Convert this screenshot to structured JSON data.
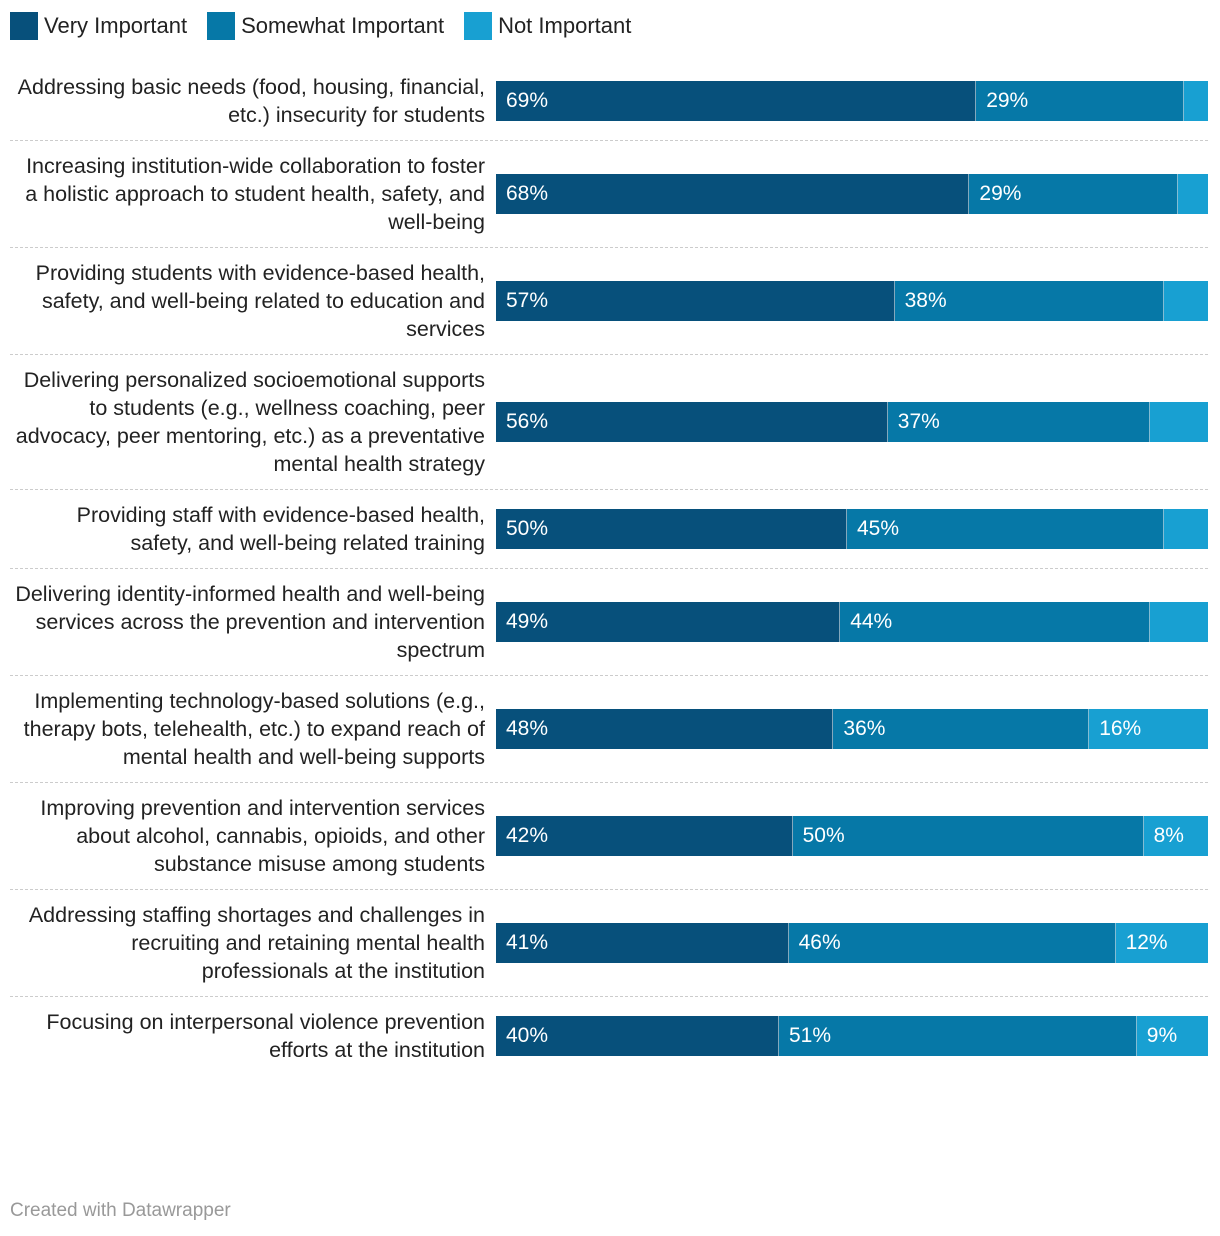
{
  "chart_data": {
    "type": "stacked-bar",
    "categories": [
      "Addressing basic needs (food, housing, financial, etc.) insecurity for students",
      "Increasing institution-wide collaboration to foster a holistic approach to student health, safety, and well-being",
      "Providing students with evidence-based health, safety, and well-being related to education and services",
      "Delivering personalized socioemotional supports to students (e.g., wellness coaching, peer advocacy, peer mentoring, etc.) as a preventative mental health strategy",
      "Providing staff with evidence-based health, safety, and well-being related training",
      "Delivering identity-informed health and well-being services across the prevention and intervention spectrum",
      "Implementing technology-based solutions (e.g., therapy bots, telehealth, etc.) to expand reach of mental health and well-being supports",
      "Improving prevention and intervention services about alcohol, cannabis, opioids, and other substance misuse among students",
      "Addressing staffing shortages and challenges in recruiting and retaining mental health professionals at the institution",
      "Focusing on interpersonal violence prevention efforts at the institution"
    ],
    "series": [
      {
        "name": "Very Important",
        "color": "#07507b",
        "values": [
          69,
          68,
          57,
          56,
          50,
          49,
          48,
          42,
          41,
          40
        ],
        "value_labels": [
          "69%",
          "68%",
          "57%",
          "56%",
          "50%",
          "49%",
          "48%",
          "42%",
          "41%",
          "40%"
        ]
      },
      {
        "name": "Somewhat Important",
        "color": "#0678a7",
        "values": [
          29,
          29,
          38,
          37,
          45,
          44,
          36,
          50,
          46,
          51
        ],
        "value_labels": [
          "29%",
          "29%",
          "38%",
          "37%",
          "45%",
          "44%",
          "36%",
          "50%",
          "46%",
          "51%"
        ]
      },
      {
        "name": "Not Important",
        "color": "#18a0d2",
        "values": [
          2,
          3,
          5,
          7,
          5,
          7,
          16,
          8,
          12,
          9
        ],
        "value_labels": [
          null,
          null,
          null,
          null,
          null,
          null,
          "16%",
          "8%",
          "12%",
          "9%"
        ]
      }
    ],
    "footer": "Created with Datawrapper"
  }
}
